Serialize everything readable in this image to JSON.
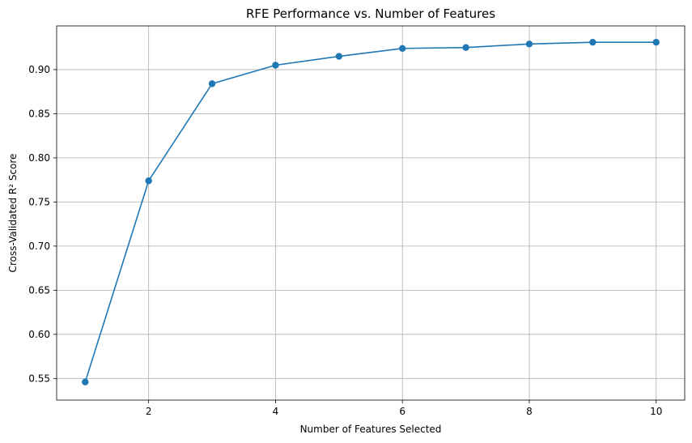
{
  "chart_data": {
    "type": "line",
    "title": "RFE Performance vs. Number of Features",
    "xlabel": "Number of Features Selected",
    "ylabel": "Cross-Validated R² Score",
    "xlim": [
      0.55,
      10.45
    ],
    "ylim": [
      0.5255,
      0.9495
    ],
    "xticks": [
      2,
      4,
      6,
      8,
      10
    ],
    "yticks": [
      0.55,
      0.6,
      0.65,
      0.7,
      0.75,
      0.8,
      0.85,
      0.9
    ],
    "grid": true,
    "series": [
      {
        "color": "#1f77b4",
        "marker": "circle",
        "x": [
          1,
          2,
          3,
          4,
          5,
          6,
          7,
          8,
          9,
          10
        ],
        "y": [
          0.546,
          0.774,
          0.884,
          0.905,
          0.915,
          0.924,
          0.925,
          0.929,
          0.931,
          0.931
        ]
      }
    ]
  }
}
